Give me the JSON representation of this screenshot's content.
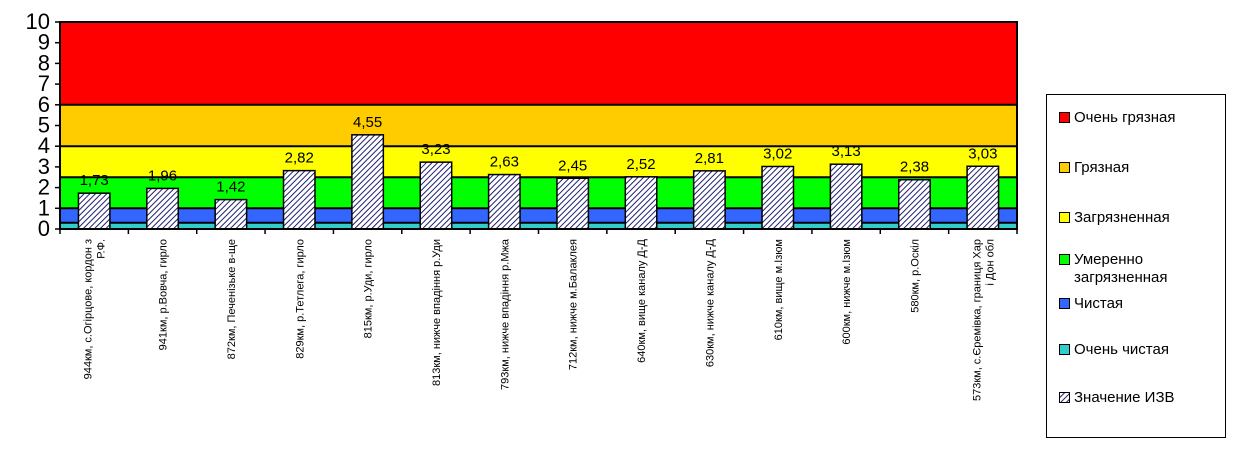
{
  "chart_data": {
    "type": "bar",
    "categories": [
      "944км, с.Огірцове, кордон з Р.Ф.",
      "941км, р.Вовча, гирло",
      "872км, Печенізьке в-ще",
      "829км, р.Тетлега, гирло",
      "815км, р.Уди, гирло",
      "813км, нижче впадіння р.Уди",
      "793км, нижче впадіння р.Мжа",
      "712км, нижче м.Балаклея",
      "640км, вище каналу Д-Д",
      "630км, нижче каналу Д-Д",
      "610км, вище м.Ізюм",
      "600км, нижче м.Ізюм",
      "580км, р.Оскіл",
      "573км, с.Єремівка, границя Хар і Дон обл"
    ],
    "values": [
      1.73,
      1.96,
      1.42,
      2.82,
      4.55,
      3.23,
      2.63,
      2.45,
      2.52,
      2.81,
      3.02,
      3.13,
      2.38,
      3.03
    ],
    "value_labels": [
      "1,73",
      "1,96",
      "1,42",
      "2,82",
      "4,55",
      "3,23",
      "2,63",
      "2,45",
      "2,52",
      "2,81",
      "3,02",
      "3,13",
      "2,38",
      "3,03"
    ],
    "ylim": [
      0,
      10
    ],
    "yticks": [
      "0",
      "1",
      "2",
      "3",
      "4",
      "5",
      "6",
      "7",
      "8",
      "9",
      "10"
    ],
    "bands": [
      {
        "name": "Очень чистая",
        "from": 0,
        "to": 0.3,
        "color": "#33CCCC"
      },
      {
        "name": "Чистая",
        "from": 0.3,
        "to": 1.0,
        "color": "#3366FF"
      },
      {
        "name": "Умеренно загрязненная",
        "from": 1.0,
        "to": 2.5,
        "color": "#00FF00"
      },
      {
        "name": "Загрязненная",
        "from": 2.5,
        "to": 4.0,
        "color": "#FFFF00"
      },
      {
        "name": "Грязная",
        "from": 4.0,
        "to": 6.0,
        "color": "#FFCC00"
      },
      {
        "name": "Очень грязная",
        "from": 6.0,
        "to": 10.0,
        "color": "#FF0000"
      }
    ],
    "series_name": "Значение ИЗВ",
    "grid": false,
    "legend_position": "right"
  },
  "legend": [
    {
      "label": "Очень грязная",
      "color": "#FF0000"
    },
    {
      "label": "Грязная",
      "color": "#FFCC00"
    },
    {
      "label": "Загрязненная",
      "color": "#FFFF00"
    },
    {
      "label": "Умеренно загрязненная",
      "color": "#00FF00"
    },
    {
      "label": "Чистая",
      "color": "#3366FF"
    },
    {
      "label": "Очень чистая",
      "color": "#33CCCC"
    },
    {
      "label": "Значение ИЗВ",
      "pattern": "hatched"
    }
  ]
}
